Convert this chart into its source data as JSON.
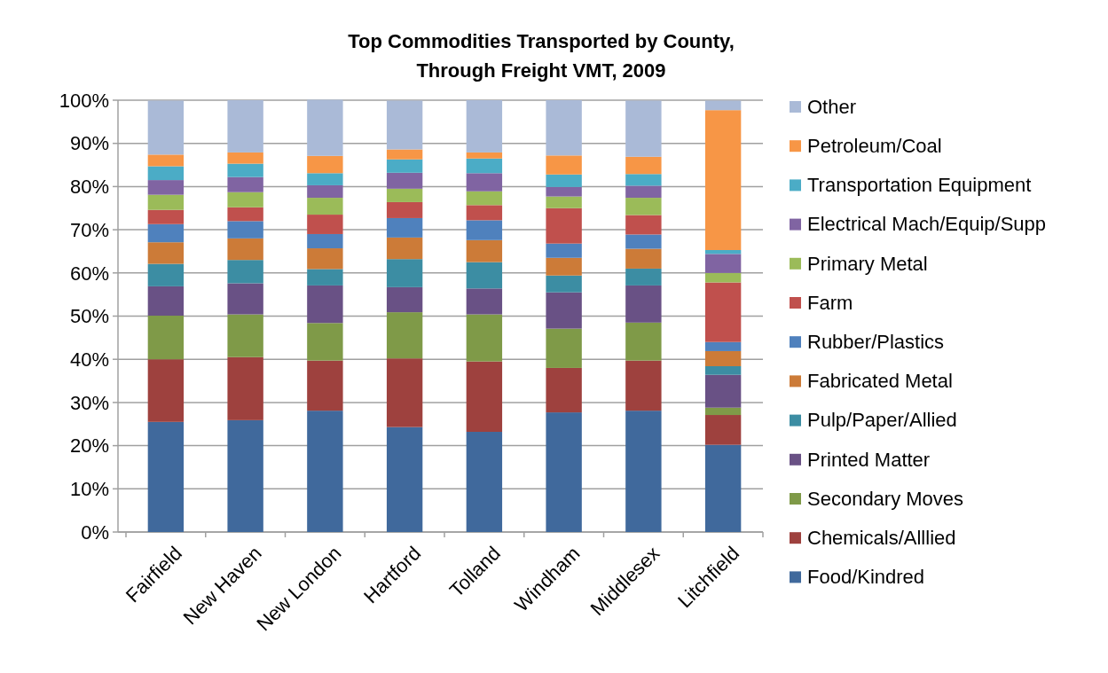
{
  "chart_data": {
    "type": "bar",
    "stacked": true,
    "title": "Top Commodities Transported by County,\nThrough Freight VMT, 2009",
    "categories": [
      "Fairfield",
      "New Haven",
      "New London",
      "Hartford",
      "Tolland",
      "Windham",
      "Middlesex",
      "Litchfield"
    ],
    "series": [
      {
        "name": "Food/Kindred",
        "color": "#40699c",
        "values": [
          25.5,
          25.9,
          28.1,
          24.3,
          23.2,
          27.7,
          28.1,
          20.2
        ]
      },
      {
        "name": "Chemicals/Alllied",
        "color": "#9e413e",
        "values": [
          14.5,
          14.6,
          11.6,
          15.9,
          16.3,
          10.3,
          11.6,
          6.9
        ]
      },
      {
        "name": "Secondary Moves",
        "color": "#7f9a48",
        "values": [
          10.1,
          9.9,
          8.7,
          10.7,
          10.9,
          9.1,
          8.8,
          1.7
        ]
      },
      {
        "name": "Printed Matter",
        "color": "#695185",
        "values": [
          6.8,
          7.2,
          8.7,
          5.8,
          6.0,
          8.4,
          8.6,
          7.6
        ]
      },
      {
        "name": "Pulp/Paper/Allied",
        "color": "#3c8da3",
        "values": [
          5.2,
          5.4,
          3.8,
          6.5,
          6.1,
          3.9,
          3.9,
          2.0
        ]
      },
      {
        "name": "Fabricated Metal",
        "color": "#cc7b38",
        "values": [
          5.0,
          5.0,
          4.8,
          5.0,
          5.1,
          4.1,
          4.6,
          3.5
        ]
      },
      {
        "name": "Rubber/Plastics",
        "color": "#4f81bd",
        "values": [
          4.2,
          4.0,
          3.3,
          4.5,
          4.6,
          3.3,
          3.3,
          2.1
        ]
      },
      {
        "name": "Farm",
        "color": "#c0504d",
        "values": [
          3.3,
          3.2,
          4.5,
          3.7,
          3.5,
          8.2,
          4.5,
          13.8
        ]
      },
      {
        "name": "Primary Metal",
        "color": "#9bbb59",
        "values": [
          3.5,
          3.5,
          3.9,
          3.1,
          3.2,
          2.7,
          4.0,
          2.2
        ]
      },
      {
        "name": "Electrical Mach/Equip/Supp",
        "color": "#8064a2",
        "values": [
          3.4,
          3.5,
          2.9,
          3.7,
          4.2,
          2.2,
          2.8,
          4.4
        ]
      },
      {
        "name": "Transportation Equipment",
        "color": "#4bacc6",
        "values": [
          3.2,
          3.1,
          2.8,
          3.1,
          3.4,
          2.9,
          2.7,
          0.9
        ]
      },
      {
        "name": "Petroleum/Coal",
        "color": "#f79646",
        "values": [
          2.7,
          2.6,
          4.0,
          2.3,
          1.4,
          4.4,
          4.0,
          32.4
        ]
      },
      {
        "name": "Other",
        "color": "#aabad7",
        "values": [
          12.5,
          12.1,
          13.0,
          11.3,
          12.1,
          12.8,
          13.0,
          2.2
        ]
      }
    ],
    "ylim": [
      0,
      100
    ],
    "yticks": [
      {
        "value": 0,
        "label": "0%"
      },
      {
        "value": 10,
        "label": "10%"
      },
      {
        "value": 20,
        "label": "20%"
      },
      {
        "value": 30,
        "label": "30%"
      },
      {
        "value": 40,
        "label": "40%"
      },
      {
        "value": 50,
        "label": "50%"
      },
      {
        "value": 60,
        "label": "60%"
      },
      {
        "value": 70,
        "label": "70%"
      },
      {
        "value": 80,
        "label": "80%"
      },
      {
        "value": 90,
        "label": "90%"
      },
      {
        "value": 100,
        "label": "100%"
      }
    ],
    "grid": "y",
    "legend": "right"
  }
}
